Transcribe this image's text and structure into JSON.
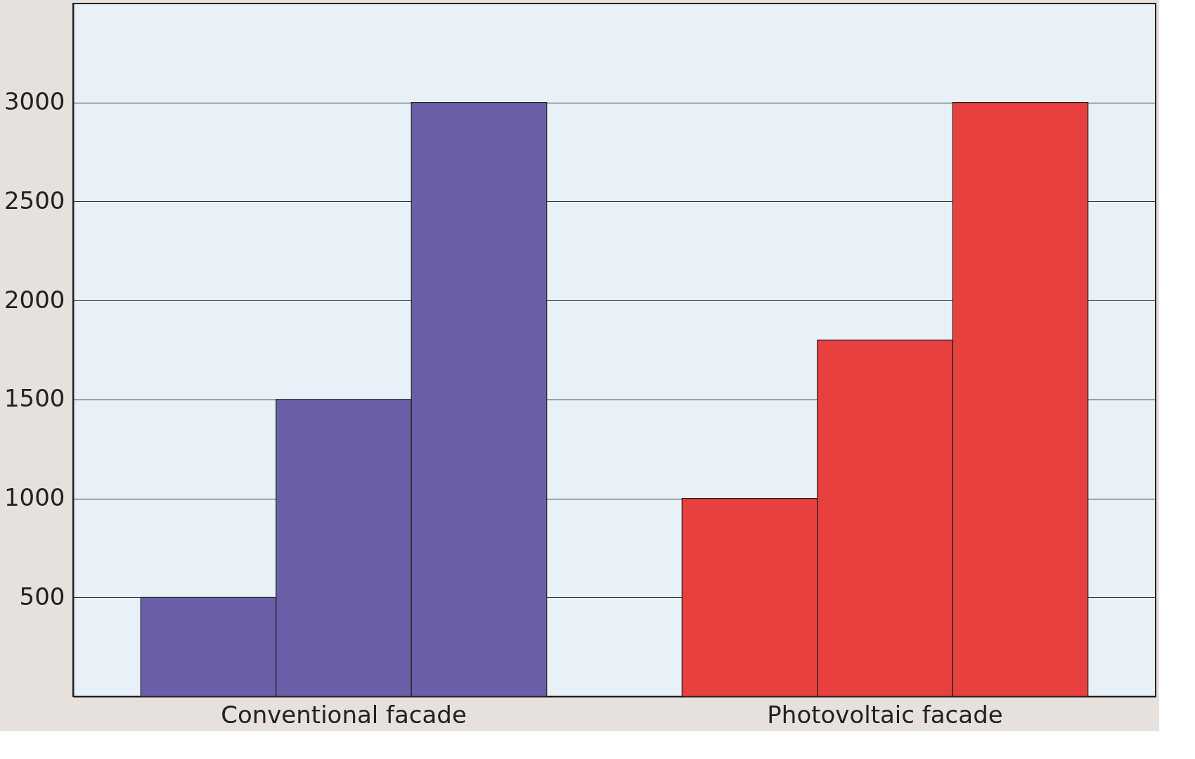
{
  "chart_data": {
    "type": "bar",
    "categories": [
      null,
      "Conventional facade",
      null,
      null,
      null,
      "Photovoltaic facade",
      null
    ],
    "values": [
      500,
      1500,
      3000,
      null,
      1000,
      1800,
      3000
    ],
    "colors": [
      "#6b5ea8",
      "#6b5ea8",
      "#6b5ea8",
      null,
      "#e8403f",
      "#e8403f",
      "#e8403f"
    ],
    "ylim": [
      0,
      3500
    ],
    "yticks": [
      500,
      1000,
      1500,
      2000,
      2500,
      3000
    ],
    "grid": "y"
  }
}
